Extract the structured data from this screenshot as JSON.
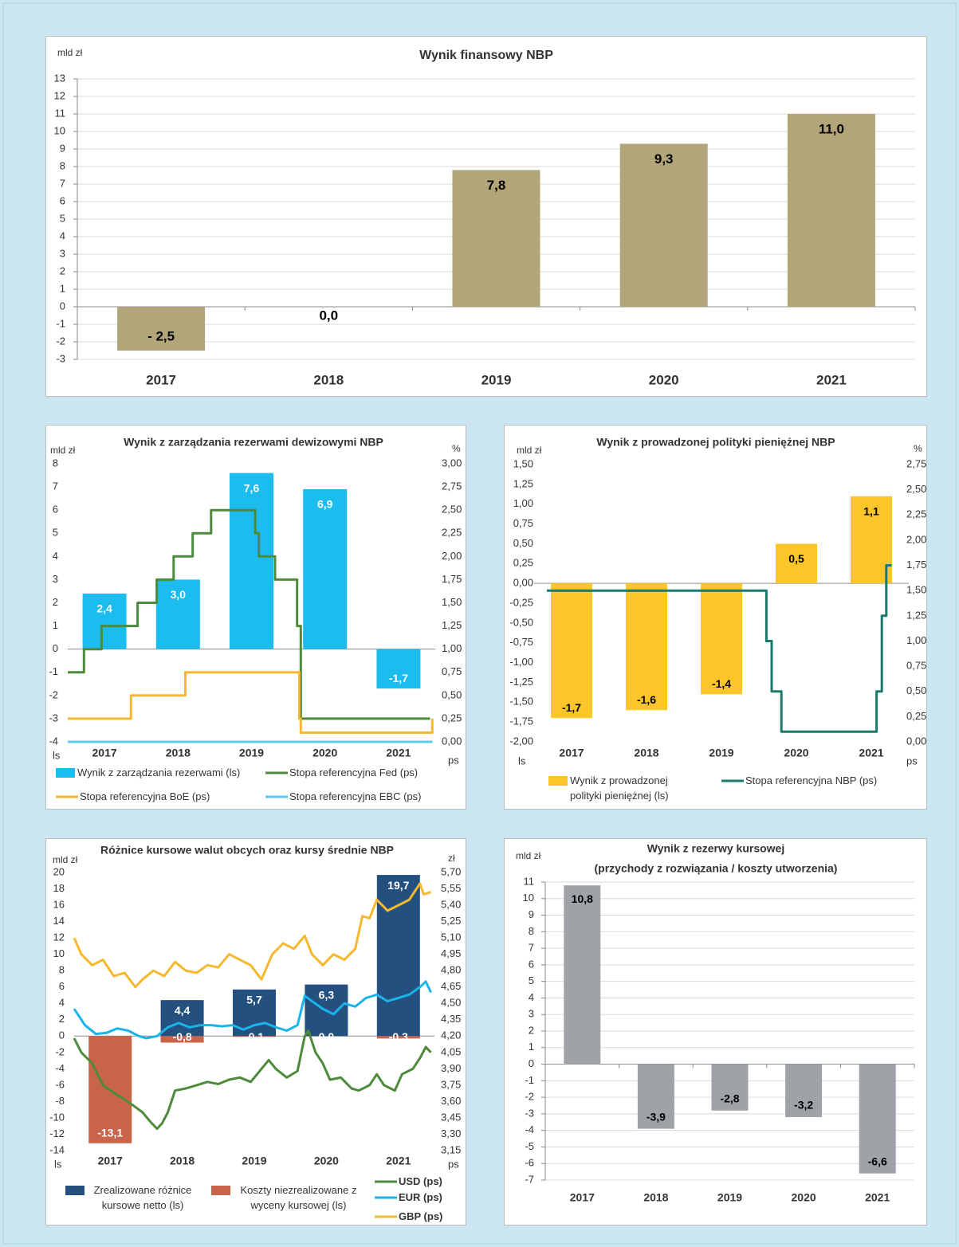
{
  "chart_data": [
    {
      "type": "bar",
      "title": "Wynik finansowy NBP",
      "y_label": "mld zł",
      "categories": [
        "2017",
        "2018",
        "2019",
        "2020",
        "2021"
      ],
      "values": [
        -2.5,
        0,
        7.8,
        9.3,
        11.0
      ],
      "value_labels": [
        "- 2,5",
        "0,0",
        "7,8",
        "9,3",
        "11,0"
      ],
      "color": "#b3a57a",
      "label_color": "#000000",
      "ylim": [
        -3,
        13
      ],
      "yticks": [
        -3,
        -2,
        -1,
        0,
        1,
        2,
        3,
        4,
        5,
        6,
        7,
        8,
        9,
        10,
        11,
        12,
        13
      ],
      "grid": true
    },
    {
      "type": "combo",
      "title": "Wynik z zarządzania rezerwami dewizowymi NBP",
      "y_label": "mld zł",
      "y2_label": "%",
      "left_axis_note": "ls",
      "right_axis_note": "ps",
      "categories": [
        "2017",
        "2018",
        "2019",
        "2020",
        "2021"
      ],
      "xlim": [
        2017,
        2022
      ],
      "ylim": [
        -4,
        8
      ],
      "yticks": [
        -4,
        -3,
        -2,
        -1,
        0,
        1,
        2,
        3,
        4,
        5,
        6,
        7,
        8
      ],
      "y2lim": [
        0,
        3
      ],
      "y2ticks": [
        {
          "value": 0,
          "label": "0,00"
        },
        {
          "value": 0.25,
          "label": "0,25"
        },
        {
          "value": 0.5,
          "label": "0,50"
        },
        {
          "value": 0.75,
          "label": "0,75"
        },
        {
          "value": 1,
          "label": "1,00"
        },
        {
          "value": 1.25,
          "label": "1,25"
        },
        {
          "value": 1.5,
          "label": "1,50"
        },
        {
          "value": 1.75,
          "label": "1,75"
        },
        {
          "value": 2,
          "label": "2,00"
        },
        {
          "value": 2.25,
          "label": "2,25"
        },
        {
          "value": 2.5,
          "label": "2,50"
        },
        {
          "value": 2.75,
          "label": "2,75"
        },
        {
          "value": 3,
          "label": "3,00"
        }
      ],
      "grid": false,
      "series": [
        {
          "name": "Wynik z zarządzania rezerwami (ls)",
          "type": "bar",
          "color": "#1cbcef",
          "label_color": "#ffffff",
          "values": [
            2.4,
            3.0,
            7.6,
            6.9,
            -1.7
          ],
          "value_labels": [
            "2,4",
            "3,0",
            "7,6",
            "6,9",
            "-1,7"
          ]
        },
        {
          "name": "Stopa referencyjna Fed (ps)",
          "type": "line",
          "axis": "y2",
          "color": "#4e8a3c",
          "x": [
            2017,
            2017.22,
            2017.22,
            2017.46,
            2017.46,
            2017.95,
            2017.95,
            2018.21,
            2018.21,
            2018.44,
            2018.44,
            2018.7,
            2018.7,
            2018.95,
            2018.95,
            2019.55,
            2019.55,
            2019.6,
            2019.6,
            2019.82,
            2019.82,
            2020.12,
            2020.12,
            2020.17,
            2020.17,
            2021.93
          ],
          "values": [
            0.75,
            0.75,
            1.0,
            1.0,
            1.25,
            1.25,
            1.5,
            1.5,
            1.75,
            1.75,
            2.0,
            2.0,
            2.25,
            2.25,
            2.5,
            2.5,
            2.25,
            2.25,
            2.0,
            2.0,
            1.75,
            1.75,
            1.25,
            1.25,
            0.25,
            0.25
          ]
        },
        {
          "name": "Stopa referencyjna BoE (ps)",
          "type": "line",
          "axis": "y2",
          "color": "#f5b82e",
          "x": [
            2017,
            2017.86,
            2017.86,
            2018.6,
            2018.6,
            2020.15,
            2020.15,
            2020.17,
            2020.17,
            2021.96,
            2021.96
          ],
          "values": [
            0.25,
            0.25,
            0.5,
            0.5,
            0.75,
            0.75,
            0.25,
            0.25,
            0.1,
            0.1,
            0.25
          ]
        },
        {
          "name": "Stopa referencyjna EBC (ps)",
          "type": "line",
          "axis": "y2",
          "color": "#5cc9f0",
          "x": [
            2017,
            2021.96
          ],
          "values": [
            0,
            0
          ]
        }
      ]
    },
    {
      "type": "combo",
      "title": "Wynik z prowadzonej polityki pieniężnej NBP",
      "y_label": "mld zł",
      "y2_label": "%",
      "left_axis_note": "ls",
      "right_axis_note": "ps",
      "categories": [
        "2017",
        "2018",
        "2019",
        "2020",
        "2021"
      ],
      "xlim": [
        2017,
        2022
      ],
      "ylim": [
        -2,
        1.5
      ],
      "yticks": [
        {
          "value": -2,
          "label": "-2,00"
        },
        {
          "value": -1.75,
          "label": "-1,75"
        },
        {
          "value": -1.5,
          "label": "-1,50"
        },
        {
          "value": -1.25,
          "label": "-1,25"
        },
        {
          "value": -1,
          "label": "-1,00"
        },
        {
          "value": -0.75,
          "label": "-0,75"
        },
        {
          "value": -0.5,
          "label": "-0,50"
        },
        {
          "value": -0.25,
          "label": "-0,25"
        },
        {
          "value": 0,
          "label": "0,00"
        },
        {
          "value": 0.25,
          "label": "0,25"
        },
        {
          "value": 0.5,
          "label": "0,50"
        },
        {
          "value": 0.75,
          "label": "0,75"
        },
        {
          "value": 1,
          "label": "1,00"
        },
        {
          "value": 1.25,
          "label": "1,25"
        },
        {
          "value": 1.5,
          "label": "1,50"
        }
      ],
      "y2lim": [
        0,
        2.75
      ],
      "y2ticks": [
        {
          "value": 0,
          "label": "0,00"
        },
        {
          "value": 0.25,
          "label": "0,25"
        },
        {
          "value": 0.5,
          "label": "0,50"
        },
        {
          "value": 0.75,
          "label": "0,75"
        },
        {
          "value": 1,
          "label": "1,00"
        },
        {
          "value": 1.25,
          "label": "1,25"
        },
        {
          "value": 1.5,
          "label": "1,50"
        },
        {
          "value": 1.75,
          "label": "1,75"
        },
        {
          "value": 2,
          "label": "2,00"
        },
        {
          "value": 2.25,
          "label": "2,25"
        },
        {
          "value": 2.5,
          "label": "2,50"
        },
        {
          "value": 2.75,
          "label": "2,75"
        }
      ],
      "grid": false,
      "series": [
        {
          "name": "Wynik z prowadzonej polityki pieniężnej (ls)",
          "type": "bar",
          "color": "#fcc62a",
          "label_color": "#000000",
          "values": [
            -1.7,
            -1.6,
            -1.4,
            0.5,
            1.1
          ],
          "value_labels": [
            "-1,7",
            "-1,6",
            "-1,4",
            "0,5",
            "1,1"
          ]
        },
        {
          "name": "Stopa referencyjna NBP (ps)",
          "type": "line",
          "axis": "y2",
          "color": "#177a6a",
          "x": [
            2017.17,
            2020.1,
            2020.1,
            2020.17,
            2020.17,
            2020.3,
            2020.3,
            2021.57,
            2021.57,
            2021.64,
            2021.64,
            2021.7,
            2021.7,
            2021.77
          ],
          "values": [
            1.5,
            1.5,
            1.0,
            1.0,
            0.5,
            0.5,
            0.1,
            0.1,
            0.5,
            0.5,
            1.25,
            1.25,
            1.75,
            1.75
          ]
        }
      ]
    },
    {
      "type": "combo",
      "title": "Różnice kursowe walut obcych oraz kursy średnie NBP",
      "y_label": "mld zł",
      "y2_label": "zł",
      "left_axis_note": "ls",
      "right_axis_note": "ps",
      "categories": [
        "2017",
        "2018",
        "2019",
        "2020",
        "2021"
      ],
      "xlim": [
        2017,
        2022
      ],
      "ylim": [
        -14,
        20
      ],
      "yticks": [
        -14,
        -12,
        -10,
        -8,
        -6,
        -4,
        -2,
        0,
        2,
        4,
        6,
        8,
        10,
        12,
        14,
        16,
        18,
        20
      ],
      "y2lim": [
        3.15,
        5.7
      ],
      "y2ticks": [
        {
          "value": 3.15,
          "label": "3,15"
        },
        {
          "value": 3.3,
          "label": "3,30"
        },
        {
          "value": 3.45,
          "label": "3,45"
        },
        {
          "value": 3.6,
          "label": "3,60"
        },
        {
          "value": 3.75,
          "label": "3,75"
        },
        {
          "value": 3.9,
          "label": "3,90"
        },
        {
          "value": 4.05,
          "label": "4,05"
        },
        {
          "value": 4.2,
          "label": "4,20"
        },
        {
          "value": 4.35,
          "label": "4,35"
        },
        {
          "value": 4.5,
          "label": "4,50"
        },
        {
          "value": 4.65,
          "label": "4,65"
        },
        {
          "value": 4.8,
          "label": "4,80"
        },
        {
          "value": 4.95,
          "label": "4,95"
        },
        {
          "value": 5.1,
          "label": "5,10"
        },
        {
          "value": 5.25,
          "label": "5,25"
        },
        {
          "value": 5.4,
          "label": "5,40"
        },
        {
          "value": 5.55,
          "label": "5,55"
        },
        {
          "value": 5.7,
          "label": "5,70"
        }
      ],
      "grid": false,
      "series": [
        {
          "name": "Zrealizowane różnice kursowe netto (ls)",
          "type": "bar",
          "color": "#24507f",
          "label_color": "#ffffff",
          "values": [
            null,
            4.4,
            5.7,
            6.3,
            19.7
          ],
          "value_labels": [
            null,
            "4,4",
            "5,7",
            "6,3",
            "19,7"
          ]
        },
        {
          "name": "Koszty niezrealizowane z wyceny kursowej (ls)",
          "type": "bar",
          "color": "#c9644a",
          "label_color": "#ffffff",
          "values": [
            -13.1,
            -0.8,
            -0.1,
            0.0,
            -0.3
          ],
          "value_labels": [
            "-13,1",
            "-0,8",
            "-0,1",
            "0,0",
            "-0,3"
          ]
        },
        {
          "name": "USD (ps)",
          "type": "line",
          "axis": "y2",
          "color": "#4e8a3c",
          "x": [
            2017.0,
            2017.1,
            2017.25,
            2017.4,
            2017.55,
            2017.7,
            2017.85,
            2017.95,
            2018.05,
            2018.15,
            2018.22,
            2018.3,
            2018.4,
            2018.55,
            2018.7,
            2018.85,
            2019.0,
            2019.15,
            2019.3,
            2019.45,
            2019.6,
            2019.7,
            2019.8,
            2019.95,
            2020.1,
            2020.2,
            2020.25,
            2020.35,
            2020.45,
            2020.55,
            2020.7,
            2020.85,
            2020.95,
            2021.1,
            2021.2,
            2021.3,
            2021.45,
            2021.55,
            2021.7,
            2021.8,
            2021.88,
            2021.95
          ],
          "values": [
            4.18,
            4.05,
            3.95,
            3.75,
            3.68,
            3.62,
            3.55,
            3.5,
            3.42,
            3.35,
            3.4,
            3.5,
            3.7,
            3.72,
            3.75,
            3.78,
            3.76,
            3.8,
            3.82,
            3.78,
            3.9,
            3.98,
            3.9,
            3.82,
            3.88,
            4.2,
            4.25,
            4.05,
            3.95,
            3.8,
            3.82,
            3.72,
            3.7,
            3.75,
            3.85,
            3.75,
            3.7,
            3.85,
            3.9,
            4.0,
            4.1,
            4.05
          ]
        },
        {
          "name": "EUR (ps)",
          "type": "line",
          "axis": "y2",
          "color": "#1ab4ec",
          "x": [
            2017.0,
            2017.15,
            2017.3,
            2017.45,
            2017.6,
            2017.75,
            2017.9,
            2018.0,
            2018.15,
            2018.3,
            2018.45,
            2018.6,
            2018.75,
            2018.9,
            2019.05,
            2019.2,
            2019.35,
            2019.5,
            2019.65,
            2019.8,
            2019.95,
            2020.1,
            2020.2,
            2020.3,
            2020.45,
            2020.6,
            2020.75,
            2020.9,
            2021.05,
            2021.2,
            2021.35,
            2021.5,
            2021.65,
            2021.8,
            2021.88,
            2021.95
          ],
          "values": [
            4.45,
            4.3,
            4.22,
            4.23,
            4.27,
            4.25,
            4.2,
            4.18,
            4.2,
            4.28,
            4.32,
            4.28,
            4.3,
            4.3,
            4.29,
            4.3,
            4.26,
            4.3,
            4.32,
            4.28,
            4.25,
            4.3,
            4.57,
            4.52,
            4.45,
            4.4,
            4.5,
            4.47,
            4.55,
            4.58,
            4.52,
            4.55,
            4.58,
            4.65,
            4.7,
            4.6
          ]
        },
        {
          "name": "GBP (ps)",
          "type": "line",
          "axis": "y2",
          "color": "#f5b82e",
          "x": [
            2017.0,
            2017.1,
            2017.25,
            2017.4,
            2017.55,
            2017.7,
            2017.85,
            2017.95,
            2018.1,
            2018.25,
            2018.4,
            2018.55,
            2018.7,
            2018.85,
            2019.0,
            2019.15,
            2019.3,
            2019.45,
            2019.6,
            2019.75,
            2019.9,
            2020.05,
            2020.2,
            2020.3,
            2020.45,
            2020.6,
            2020.75,
            2020.9,
            2021.0,
            2021.1,
            2021.2,
            2021.35,
            2021.5,
            2021.65,
            2021.8,
            2021.85,
            2021.95
          ],
          "values": [
            5.1,
            4.95,
            4.85,
            4.9,
            4.75,
            4.78,
            4.65,
            4.72,
            4.8,
            4.75,
            4.88,
            4.8,
            4.78,
            4.85,
            4.83,
            4.95,
            4.9,
            4.85,
            4.72,
            4.95,
            5.05,
            5.0,
            5.12,
            4.95,
            4.85,
            4.95,
            4.9,
            5.0,
            5.3,
            5.28,
            5.45,
            5.35,
            5.4,
            5.45,
            5.6,
            5.5,
            5.52
          ]
        }
      ]
    },
    {
      "type": "bar",
      "title": "Wynik z rezerwy kursowej",
      "subtitle": "(przychody z rozwiązania / koszty utworzenia)",
      "y_label": "mld zł",
      "categories": [
        "2017",
        "2018",
        "2019",
        "2020",
        "2021"
      ],
      "values": [
        10.8,
        -3.9,
        -2.8,
        -3.2,
        -6.6
      ],
      "value_labels": [
        "10,8",
        "-3,9",
        "-2,8",
        "-3,2",
        "-6,6"
      ],
      "color": "#9fa2a7",
      "label_color": "#000000",
      "ylim": [
        -7,
        11
      ],
      "yticks": [
        -7,
        -6,
        -5,
        -4,
        -3,
        -2,
        -1,
        0,
        1,
        2,
        3,
        4,
        5,
        6,
        7,
        8,
        9,
        10,
        11
      ],
      "grid": true
    }
  ]
}
